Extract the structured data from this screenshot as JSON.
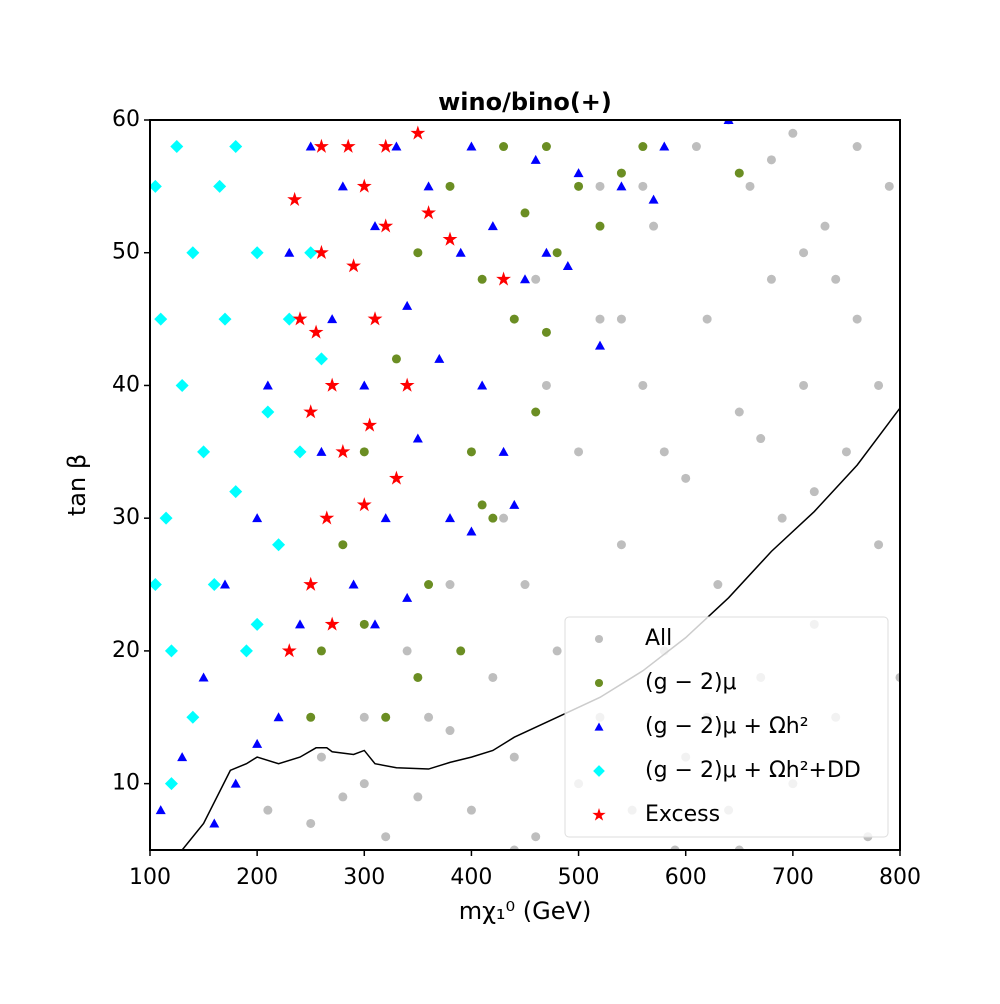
{
  "chart_data": {
    "type": "scatter",
    "title": "wino/bino(+)",
    "xlabel": "mχ₁⁰ (GeV)",
    "ylabel": "tan β",
    "xlim": [
      100,
      800
    ],
    "ylim": [
      5,
      60
    ],
    "xticks": [
      100,
      200,
      300,
      400,
      500,
      600,
      700,
      800
    ],
    "yticks": [
      10,
      20,
      30,
      40,
      50,
      60
    ],
    "legend": "lower right",
    "series": [
      {
        "name": "All",
        "color": "#bebebe",
        "marker": "circle",
        "x": [
          210,
          250,
          260,
          300,
          320,
          350,
          380,
          400,
          420,
          440,
          450,
          460,
          480,
          500,
          500,
          520,
          520,
          540,
          550,
          560,
          570,
          580,
          600,
          600,
          610,
          620,
          630,
          640,
          650,
          660,
          670,
          680,
          690,
          700,
          700,
          710,
          720,
          730,
          740,
          750,
          760,
          770,
          780,
          790,
          800,
          560,
          640,
          680,
          760,
          720,
          620,
          580,
          540,
          470,
          430,
          380,
          340,
          300,
          460,
          520,
          740,
          780,
          650,
          590,
          710,
          670,
          440,
          360,
          280
        ],
        "values": [
          8,
          7,
          12,
          10,
          6,
          9,
          14,
          8,
          18,
          12,
          25,
          6,
          20,
          10,
          35,
          15,
          45,
          28,
          8,
          40,
          52,
          20,
          12,
          33,
          58,
          45,
          25,
          8,
          38,
          55,
          18,
          48,
          30,
          10,
          59,
          40,
          22,
          52,
          15,
          35,
          45,
          6,
          28,
          55,
          18,
          55,
          60,
          57,
          58,
          32,
          15,
          35,
          45,
          40,
          30,
          25,
          20,
          15,
          48,
          55,
          48,
          40,
          5,
          5,
          50,
          36,
          5,
          15,
          9
        ]
      },
      {
        "name": "(g − 2)μ",
        "color": "#6b8e23",
        "marker": "circle",
        "x": [
          260,
          280,
          300,
          320,
          330,
          350,
          360,
          380,
          400,
          410,
          420,
          430,
          440,
          450,
          460,
          470,
          480,
          500,
          520,
          540,
          560,
          410,
          390,
          470,
          650,
          350,
          300,
          250
        ],
        "values": [
          20,
          28,
          35,
          15,
          42,
          50,
          25,
          55,
          35,
          48,
          30,
          58,
          45,
          53,
          38,
          58,
          50,
          55,
          52,
          56,
          58,
          31,
          20,
          44,
          56,
          18,
          22,
          15
        ]
      },
      {
        "name": "(g − 2)μ + Ωh²",
        "color": "#0000ff",
        "marker": "triangle",
        "x": [
          110,
          130,
          150,
          170,
          180,
          200,
          210,
          220,
          230,
          240,
          250,
          260,
          270,
          280,
          290,
          300,
          310,
          320,
          330,
          340,
          350,
          360,
          370,
          380,
          390,
          400,
          410,
          420,
          430,
          440,
          450,
          460,
          470,
          490,
          500,
          520,
          540,
          570,
          580,
          640,
          340,
          400,
          310,
          200,
          160
        ],
        "values": [
          8,
          12,
          18,
          25,
          10,
          30,
          40,
          15,
          50,
          22,
          58,
          35,
          45,
          55,
          25,
          40,
          52,
          30,
          58,
          46,
          36,
          55,
          42,
          30,
          50,
          58,
          40,
          52,
          35,
          31,
          48,
          57,
          50,
          49,
          56,
          43,
          55,
          54,
          58,
          60,
          24,
          29,
          22,
          13,
          7
        ]
      },
      {
        "name": "(g − 2)μ + Ωh²+DD",
        "color": "#00ffff",
        "marker": "diamond",
        "x": [
          105,
          110,
          115,
          120,
          125,
          130,
          140,
          150,
          160,
          165,
          170,
          180,
          190,
          200,
          210,
          220,
          230,
          240,
          120,
          140,
          180,
          250,
          260,
          200,
          105
        ],
        "values": [
          55,
          45,
          30,
          20,
          58,
          40,
          50,
          35,
          25,
          55,
          45,
          32,
          20,
          50,
          38,
          28,
          45,
          35,
          10,
          15,
          58,
          50,
          42,
          22,
          25
        ]
      },
      {
        "name": "Excess",
        "color": "#ff0000",
        "marker": "star",
        "x": [
          235,
          240,
          250,
          255,
          260,
          265,
          270,
          280,
          285,
          290,
          300,
          305,
          310,
          320,
          330,
          340,
          350,
          360,
          270,
          250,
          230,
          380,
          430,
          300,
          320,
          260
        ],
        "values": [
          54,
          45,
          38,
          44,
          50,
          30,
          40,
          35,
          58,
          49,
          55,
          37,
          45,
          52,
          33,
          40,
          59,
          53,
          22,
          25,
          20,
          51,
          48,
          31,
          58,
          58
        ]
      }
    ],
    "limit_line": {
      "color": "#000000",
      "x": [
        130,
        150,
        175,
        190,
        200,
        220,
        240,
        255,
        265,
        270,
        290,
        300,
        310,
        330,
        360,
        380,
        400,
        420,
        440,
        480,
        520,
        560,
        600,
        640,
        680,
        720,
        760,
        800
      ],
      "values": [
        5,
        7,
        11,
        11.5,
        12,
        11.5,
        12,
        12.7,
        12.7,
        12.4,
        12.2,
        12.5,
        11.5,
        11.2,
        11.1,
        11.6,
        12,
        12.5,
        13.5,
        15,
        16.5,
        18.5,
        21,
        24,
        27.5,
        30.5,
        34,
        38.3
      ]
    }
  }
}
